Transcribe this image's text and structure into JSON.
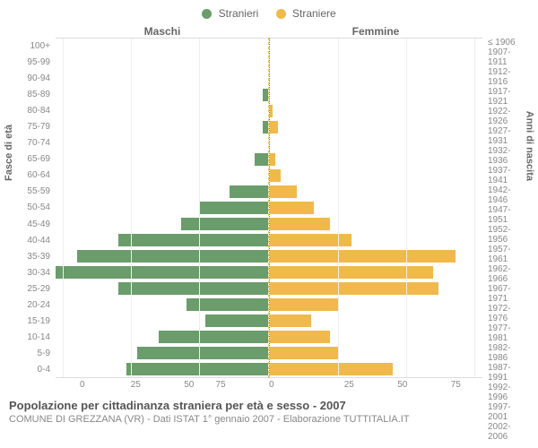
{
  "legend": {
    "male": {
      "label": "Stranieri",
      "color": "#6b9c6b"
    },
    "female": {
      "label": "Straniere",
      "color": "#f0b94a"
    }
  },
  "headers": {
    "male": "Maschi",
    "female": "Femmine"
  },
  "axis_labels": {
    "left": "Fasce di età",
    "right": "Anni di nascita"
  },
  "age_bands": [
    "100+",
    "95-99",
    "90-94",
    "85-89",
    "80-84",
    "75-79",
    "70-74",
    "65-69",
    "60-64",
    "55-59",
    "50-54",
    "45-49",
    "40-44",
    "35-39",
    "30-34",
    "25-29",
    "20-24",
    "15-19",
    "10-14",
    "5-9",
    "0-4"
  ],
  "birth_years": [
    "≤ 1906",
    "1907-1911",
    "1912-1916",
    "1917-1921",
    "1922-1926",
    "1927-1931",
    "1932-1936",
    "1937-1941",
    "1942-1946",
    "1947-1951",
    "1952-1956",
    "1957-1961",
    "1962-1966",
    "1967-1971",
    "1972-1976",
    "1977-1981",
    "1982-1986",
    "1987-1991",
    "1992-1996",
    "1997-2001",
    "2002-2006"
  ],
  "male_values": [
    0,
    0,
    0,
    2,
    0,
    2,
    0,
    5,
    0,
    14,
    25,
    32,
    55,
    70,
    78,
    55,
    30,
    23,
    40,
    48,
    52
  ],
  "female_values": [
    0,
    0,
    0,
    0,
    1,
    3,
    0,
    2,
    4,
    10,
    16,
    22,
    30,
    68,
    60,
    62,
    25,
    15,
    22,
    25,
    45
  ],
  "x_max": 78,
  "x_ticks_left": [
    75,
    50,
    25,
    0
  ],
  "x_ticks_right": [
    0,
    25,
    50,
    75
  ],
  "grid_vals": [
    25,
    50,
    75
  ],
  "title": "Popolazione per cittadinanza straniera per età e sesso - 2007",
  "subtitle": "COMUNE DI GREZZANA (VR) - Dati ISTAT 1° gennaio 2007 - Elaborazione TUTTITALIA.IT",
  "style": {
    "type": "population-pyramid",
    "background": "#ffffff",
    "grid_color": "#eeeeee",
    "text_color": "#888888",
    "label_fontsize": 10,
    "header_fontsize": 12,
    "title_fontsize": 13,
    "bar_height_pct": 78
  }
}
